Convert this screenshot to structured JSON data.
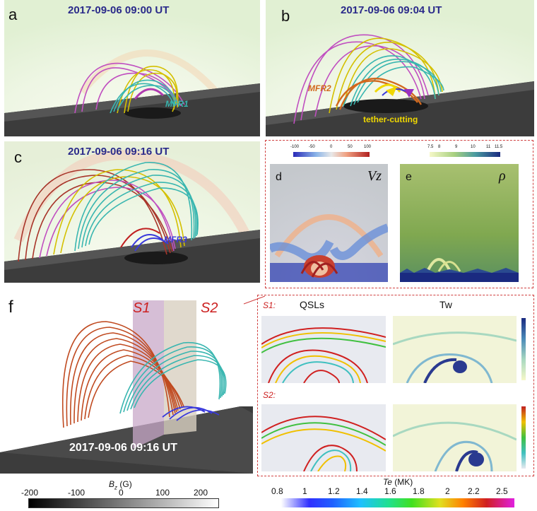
{
  "panels": {
    "a": {
      "label": "a",
      "time": "2017-09-06 09:00 UT",
      "mfr": "MFR1"
    },
    "b": {
      "label": "b",
      "time": "2017-09-06 09:04 UT",
      "mfr": "MFR2",
      "annotation": "tether-cutting"
    },
    "c": {
      "label": "c",
      "time": "2017-09-06 09:16 UT",
      "mfr": "MFR3"
    },
    "d": {
      "label": "d",
      "symbol": "Vz"
    },
    "e": {
      "label": "e",
      "symbol": "ρ"
    },
    "f": {
      "label": "f",
      "time": "2017-09-06 09:16 UT",
      "slice1": "S1",
      "slice2": "S2"
    }
  },
  "right_f": {
    "s1_label": "S1:",
    "s2_label": "S2:",
    "col1_title": "QSLs",
    "col2_title": "Tw"
  },
  "colorbars": {
    "vz": {
      "ticks": [
        "-100",
        "-50",
        "0",
        "50",
        "100"
      ]
    },
    "rho": {
      "ticks": [
        "7.5",
        "8",
        "9",
        "10",
        "11",
        "11.5"
      ]
    },
    "bz": {
      "label_var": "B",
      "label_sub": "z",
      "label_unit": "(G)",
      "ticks": [
        "-200",
        "-100",
        "0",
        "100",
        "200"
      ]
    },
    "te": {
      "label": "Te",
      "unit": "(MK)",
      "ticks": [
        "0.8",
        "1",
        "1.2",
        "1.4",
        "1.6",
        "1.8",
        "2",
        "2.2",
        "2.5"
      ]
    }
  },
  "colors": {
    "timestamp": "#2a2a8a",
    "mfr1": "#39b6b0",
    "mfr2": "#d2691e",
    "mfr3": "#3a3adc",
    "tether": "#f0d800",
    "s_labels": "#cc2020",
    "frame": "#d04040"
  }
}
